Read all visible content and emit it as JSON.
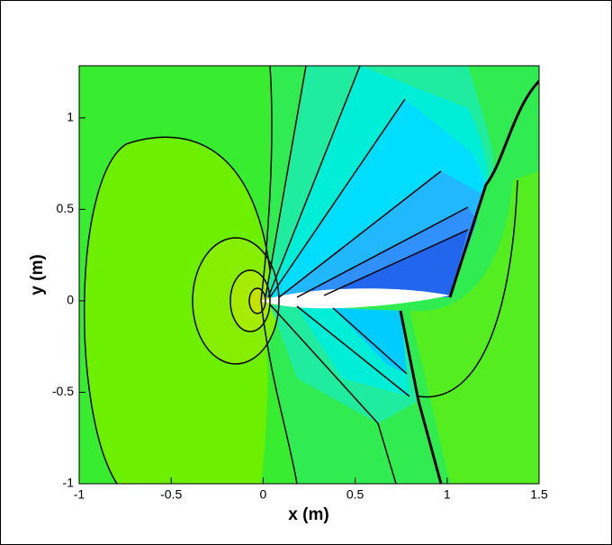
{
  "chart_data": {
    "type": "contour",
    "x_label": "x (m)",
    "y_label": "y (m)",
    "xlim": [
      -1,
      1.5
    ],
    "ylim": [
      -1,
      1.285
    ],
    "xticks": [
      -1,
      -0.5,
      0,
      0.5,
      1,
      1.5
    ],
    "yticks": [
      -1,
      -0.5,
      0,
      0.5,
      1
    ]
  }
}
